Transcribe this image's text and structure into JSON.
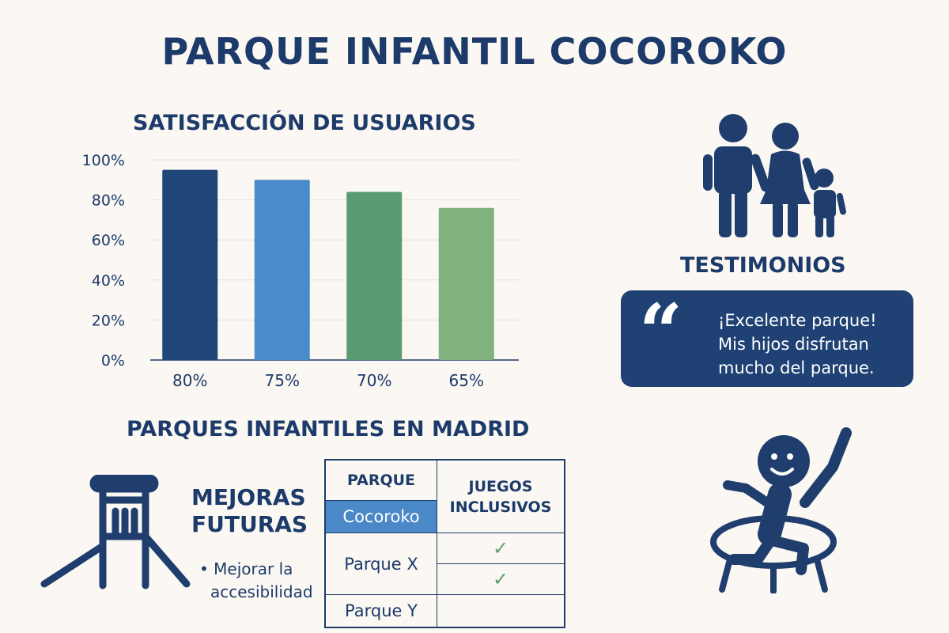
{
  "title": "PARQUE INFANTIL COCOROKO",
  "satisfaction": {
    "title": "SATISFACCIÓN DE USUARIOS"
  },
  "chart_data": {
    "type": "bar",
    "title": "SATISFACCIÓN DE USUARIOS",
    "categories": [
      "80%",
      "75%",
      "70%",
      "65%"
    ],
    "values": [
      95,
      90,
      84,
      76
    ],
    "colors": [
      "#1f4677",
      "#4a8ccb",
      "#5a9b72",
      "#7fb27e"
    ],
    "yticks": [
      "100%",
      "80%",
      "60%",
      "40%",
      "20%",
      "0%"
    ],
    "ylim": [
      0,
      100
    ],
    "grid": true
  },
  "testimonials": {
    "title": "TESTIMONIOS",
    "quote_mark": "“",
    "lines": [
      "¡Excelente parque!",
      "Mis hijos disfrutan",
      "mucho del parque."
    ]
  },
  "madrid": {
    "title": "PARQUES INFANTILES EN MADRID",
    "headers": [
      "PARQUE",
      "JUEGOS",
      "INCLUSIVOS"
    ],
    "rows": [
      {
        "name": "Cocoroko",
        "highlight": true,
        "check": false
      },
      {
        "name": "Parque X",
        "highlight": false,
        "check": true
      },
      {
        "name": "Parque Y",
        "highlight": false,
        "check": true
      }
    ],
    "check_glyph": "✓"
  },
  "mejoras": {
    "title_line1": "MEJORAS",
    "title_line2": "FUTURAS",
    "bullet": "•",
    "item_line1": "Mejorar la",
    "item_line2": "accesibilidad"
  },
  "colors": {
    "navy": "#1c3a6a",
    "accent": "#4a88c7",
    "check": "#5aa06f",
    "background": "#fbf8f3"
  },
  "icons": [
    "family-icon",
    "playground-slide-icon",
    "child-trampoline-icon",
    "quote-icon",
    "check-icon"
  ]
}
